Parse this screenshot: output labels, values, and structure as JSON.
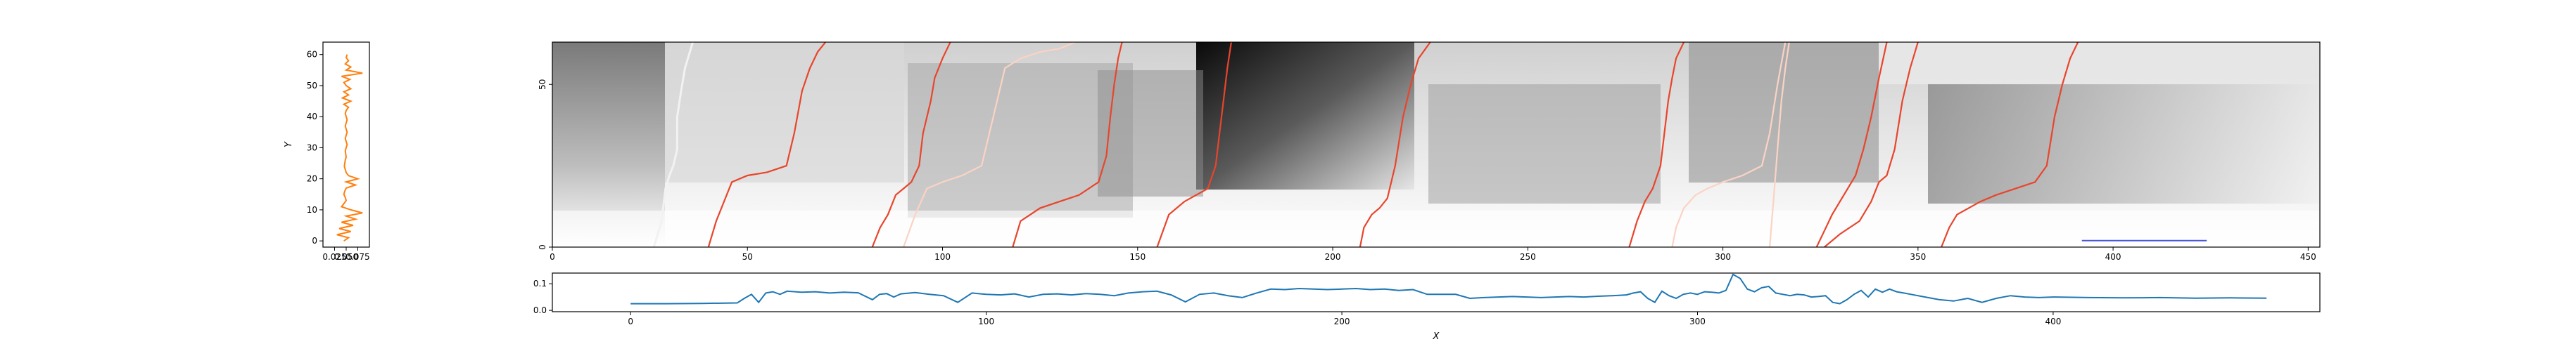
{
  "colors": {
    "left_curve": "#ff7f0e",
    "bottom_curve": "#1f77b4",
    "heatmap_light": "#ffffff",
    "heatmap_dark": "#000000",
    "path_light": "#fbd3c4",
    "path_dark": "#e8452c",
    "white_path": "#f2f2f2",
    "blue_segment": "#4a55d6"
  },
  "chart_data": [
    {
      "type": "line",
      "panel": "left",
      "ylabel": "Y",
      "xlabel": "",
      "xticks": [
        "0.025",
        "0.050",
        "0.075"
      ],
      "yticks": [
        "0",
        "10",
        "20",
        "30",
        "40",
        "50",
        "60"
      ],
      "xlim": [
        0.0,
        0.1
      ],
      "ylim": [
        -2,
        64
      ],
      "series": [
        {
          "x": [
            0.045,
            0.055,
            0.03,
            0.06,
            0.035,
            0.065,
            0.04,
            0.07,
            0.05,
            0.085,
            0.06,
            0.04,
            0.045,
            0.05,
            0.048,
            0.045,
            0.047,
            0.05,
            0.07,
            0.05,
            0.075,
            0.055,
            0.05,
            0.048,
            0.046,
            0.047,
            0.048,
            0.05,
            0.049,
            0.048,
            0.05,
            0.052,
            0.05,
            0.048,
            0.05,
            0.052,
            0.05,
            0.048,
            0.05,
            0.052,
            0.05,
            0.048,
            0.05,
            0.055,
            0.045,
            0.06,
            0.042,
            0.055,
            0.045,
            0.06,
            0.05,
            0.045,
            0.058,
            0.04,
            0.085,
            0.05,
            0.06,
            0.048,
            0.055,
            0.05,
            0.052
          ],
          "y": [
            0,
            1,
            2,
            3,
            4,
            5,
            6,
            7,
            8,
            9,
            10,
            11,
            12,
            13,
            14,
            15,
            16,
            17,
            18,
            19,
            20,
            21,
            22,
            23,
            24,
            25,
            26,
            27,
            28,
            29,
            30,
            31,
            32,
            33,
            34,
            35,
            36,
            37,
            38,
            39,
            40,
            41,
            42,
            43,
            44,
            45,
            46,
            47,
            48,
            49,
            50,
            51,
            52,
            53,
            54,
            55,
            56,
            57,
            58,
            59,
            60
          ]
        }
      ]
    },
    {
      "type": "heatmap",
      "panel": "main",
      "xticks": [
        "0",
        "50",
        "100",
        "150",
        "200",
        "250",
        "300",
        "350",
        "400",
        "450"
      ],
      "yticks": [
        "0",
        "50"
      ],
      "xlim": [
        0,
        453
      ],
      "ylim": [
        0,
        63
      ],
      "paths": [
        {
          "x": [
            26,
            28,
            29,
            30,
            31,
            32,
            32,
            33,
            34,
            36
          ],
          "y": [
            0,
            8,
            18,
            22,
            25,
            30,
            40,
            48,
            55,
            63
          ],
          "style": "white"
        },
        {
          "x": [
            40,
            42,
            44,
            46,
            50,
            55,
            60,
            62,
            64,
            66,
            68,
            70
          ],
          "y": [
            0,
            8,
            14,
            20,
            22,
            23,
            25,
            35,
            48,
            55,
            60,
            63
          ],
          "style": "dark"
        },
        {
          "x": [
            82,
            84,
            86,
            88,
            90,
            92,
            94,
            95,
            97,
            98,
            100,
            102
          ],
          "y": [
            0,
            6,
            10,
            16,
            18,
            20,
            25,
            35,
            45,
            52,
            58,
            63
          ],
          "style": "dark"
        },
        {
          "x": [
            90,
            93,
            96,
            100,
            105,
            110,
            112,
            114,
            116,
            120,
            125,
            130,
            134
          ],
          "y": [
            0,
            10,
            18,
            20,
            22,
            25,
            35,
            45,
            55,
            58,
            60,
            61,
            63
          ],
          "style": "light"
        },
        {
          "x": [
            118,
            120,
            125,
            130,
            135,
            140,
            142,
            143,
            144,
            145,
            146
          ],
          "y": [
            0,
            8,
            12,
            14,
            16,
            20,
            28,
            40,
            50,
            58,
            63
          ],
          "style": "dark"
        },
        {
          "x": [
            155,
            158,
            162,
            165,
            168,
            170,
            171,
            172,
            173,
            174
          ],
          "y": [
            0,
            10,
            14,
            16,
            18,
            25,
            35,
            45,
            55,
            63
          ],
          "style": "dark"
        },
        {
          "x": [
            207,
            208,
            210,
            212,
            214,
            216,
            218,
            220,
            222,
            225
          ],
          "y": [
            0,
            6,
            10,
            12,
            15,
            25,
            40,
            50,
            58,
            63
          ],
          "style": "dark"
        },
        {
          "x": [
            276,
            278,
            280,
            282,
            284,
            285,
            286,
            287,
            288,
            290
          ],
          "y": [
            0,
            8,
            14,
            18,
            25,
            35,
            45,
            52,
            58,
            63
          ],
          "style": "dark"
        },
        {
          "x": [
            287,
            288,
            290,
            293,
            296,
            300,
            305,
            310,
            312,
            314,
            316
          ],
          "y": [
            0,
            6,
            12,
            16,
            18,
            20,
            22,
            25,
            35,
            50,
            63
          ],
          "style": "light"
        },
        {
          "x": [
            312,
            313,
            314,
            315,
            316,
            317
          ],
          "y": [
            0,
            15,
            30,
            45,
            55,
            63
          ],
          "style": "light"
        },
        {
          "x": [
            324,
            326,
            328,
            330,
            332,
            334,
            336,
            338,
            340,
            342
          ],
          "y": [
            0,
            5,
            10,
            14,
            18,
            22,
            30,
            40,
            52,
            63
          ],
          "style": "dark"
        },
        {
          "x": [
            326,
            330,
            335,
            338,
            340,
            342,
            344,
            346,
            348,
            350
          ],
          "y": [
            0,
            4,
            8,
            14,
            20,
            22,
            30,
            45,
            55,
            63
          ],
          "style": "dark"
        },
        {
          "x": [
            356,
            358,
            360,
            363,
            366,
            370,
            375,
            380,
            383,
            385,
            387,
            389,
            391
          ],
          "y": [
            0,
            6,
            10,
            12,
            14,
            16,
            18,
            20,
            25,
            40,
            50,
            58,
            63
          ],
          "style": "dark"
        }
      ],
      "segment": {
        "x": [
          392,
          424
        ],
        "y": [
          2,
          2
        ]
      }
    },
    {
      "type": "line",
      "panel": "bottom",
      "xlabel": "X",
      "ylabel": "",
      "xticks": [
        "0",
        "100",
        "200",
        "300",
        "400"
      ],
      "yticks": [
        "0.0",
        "0.1"
      ],
      "xlim": [
        -22,
        475
      ],
      "ylim": [
        -0.005,
        0.14
      ],
      "series": [
        {
          "x": [
            0,
            10,
            20,
            30,
            32,
            34,
            36,
            38,
            40,
            42,
            44,
            48,
            52,
            56,
            60,
            64,
            68,
            70,
            72,
            74,
            76,
            80,
            84,
            88,
            92,
            96,
            100,
            104,
            108,
            112,
            116,
            120,
            124,
            128,
            132,
            136,
            140,
            144,
            148,
            152,
            156,
            160,
            164,
            168,
            172,
            176,
            180,
            184,
            188,
            192,
            196,
            200,
            204,
            208,
            212,
            216,
            220,
            224,
            228,
            232,
            236,
            240,
            244,
            248,
            252,
            256,
            260,
            264,
            268,
            272,
            276,
            280,
            282,
            284,
            286,
            288,
            290,
            292,
            294,
            296,
            298,
            300,
            302,
            304,
            306,
            308,
            310,
            312,
            314,
            316,
            318,
            320,
            322,
            324,
            326,
            328,
            330,
            332,
            334,
            336,
            338,
            340,
            342,
            344,
            346,
            348,
            350,
            352,
            354,
            356,
            358,
            360,
            364,
            368,
            372,
            376,
            380,
            384,
            388,
            392,
            396,
            400,
            410,
            420,
            430,
            440,
            450,
            460
          ],
          "y": [
            0.025,
            0.025,
            0.026,
            0.028,
            0.045,
            0.06,
            0.03,
            0.065,
            0.07,
            0.06,
            0.072,
            0.068,
            0.07,
            0.065,
            0.068,
            0.066,
            0.04,
            0.06,
            0.063,
            0.05,
            0.062,
            0.067,
            0.06,
            0.055,
            0.03,
            0.065,
            0.06,
            0.058,
            0.062,
            0.05,
            0.06,
            0.062,
            0.058,
            0.063,
            0.06,
            0.055,
            0.065,
            0.07,
            0.072,
            0.058,
            0.032,
            0.06,
            0.065,
            0.055,
            0.048,
            0.065,
            0.08,
            0.078,
            0.082,
            0.08,
            0.078,
            0.08,
            0.082,
            0.078,
            0.08,
            0.075,
            0.078,
            0.06,
            0.06,
            0.06,
            0.045,
            0.048,
            0.05,
            0.052,
            0.05,
            0.048,
            0.05,
            0.052,
            0.05,
            0.053,
            0.055,
            0.058,
            0.065,
            0.07,
            0.045,
            0.03,
            0.072,
            0.055,
            0.045,
            0.06,
            0.065,
            0.06,
            0.07,
            0.068,
            0.065,
            0.075,
            0.135,
            0.12,
            0.08,
            0.07,
            0.085,
            0.09,
            0.065,
            0.06,
            0.055,
            0.06,
            0.058,
            0.05,
            0.052,
            0.055,
            0.03,
            0.025,
            0.04,
            0.06,
            0.075,
            0.05,
            0.08,
            0.068,
            0.08,
            0.07,
            0.065,
            0.06,
            0.05,
            0.04,
            0.035,
            0.045,
            0.03,
            0.045,
            0.055,
            0.05,
            0.048,
            0.05,
            0.048,
            0.047,
            0.048,
            0.046,
            0.047,
            0.046
          ]
        }
      ]
    }
  ]
}
